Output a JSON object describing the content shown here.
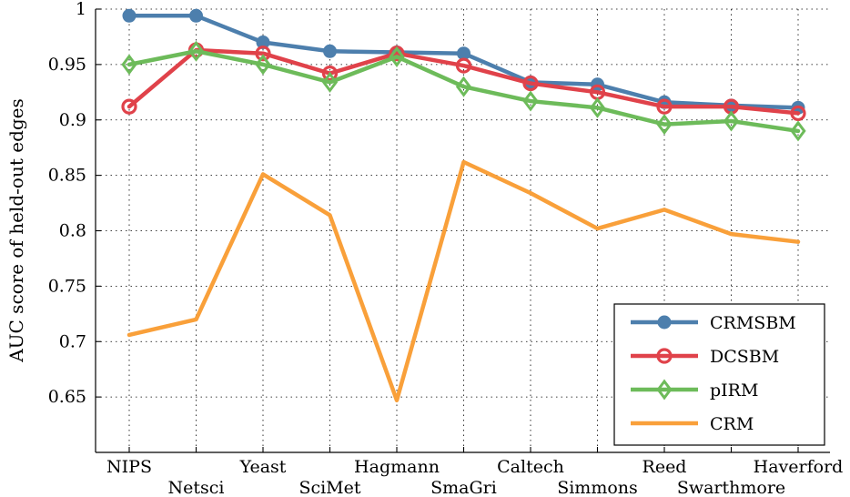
{
  "chart_data": {
    "type": "line",
    "title": "",
    "xlabel": "",
    "ylabel": "AUC score of held-out edges",
    "ylim": [
      0.6,
      1.0
    ],
    "yticks": [
      0.65,
      0.7,
      0.75,
      0.8,
      0.85,
      0.9,
      0.95,
      1
    ],
    "ytick_labels": [
      "0.65",
      "0.7",
      "0.75",
      "0.8",
      "0.85",
      "0.9",
      "0.95",
      "1"
    ],
    "grid": true,
    "legend_position": "bottom-right",
    "categories": [
      "NIPS",
      "Netsci",
      "Yeast",
      "SciMet",
      "Hagmann",
      "SmaGri",
      "Caltech",
      "Simmons",
      "Reed",
      "Swarthmore",
      "Haverford"
    ],
    "series": [
      {
        "name": "CRMSBM",
        "color": "#4d7fad",
        "marker": "circle-filled",
        "values": [
          0.994,
          0.994,
          0.97,
          0.962,
          0.961,
          0.96,
          0.934,
          0.932,
          0.916,
          0.913,
          0.911
        ]
      },
      {
        "name": "DCSBM",
        "color": "#e0424a",
        "marker": "circle-open",
        "values": [
          0.912,
          0.963,
          0.96,
          0.942,
          0.96,
          0.949,
          0.933,
          0.925,
          0.912,
          0.912,
          0.906
        ]
      },
      {
        "name": "pIRM",
        "color": "#6dbb5a",
        "marker": "diamond",
        "values": [
          0.95,
          0.962,
          0.95,
          0.934,
          0.957,
          0.93,
          0.917,
          0.911,
          0.896,
          0.899,
          0.89
        ]
      },
      {
        "name": "CRM",
        "color": "#f9a03a",
        "marker": "none",
        "values": [
          0.706,
          0.72,
          0.851,
          0.814,
          0.647,
          0.862,
          0.834,
          0.802,
          0.819,
          0.797,
          0.79
        ]
      }
    ]
  }
}
